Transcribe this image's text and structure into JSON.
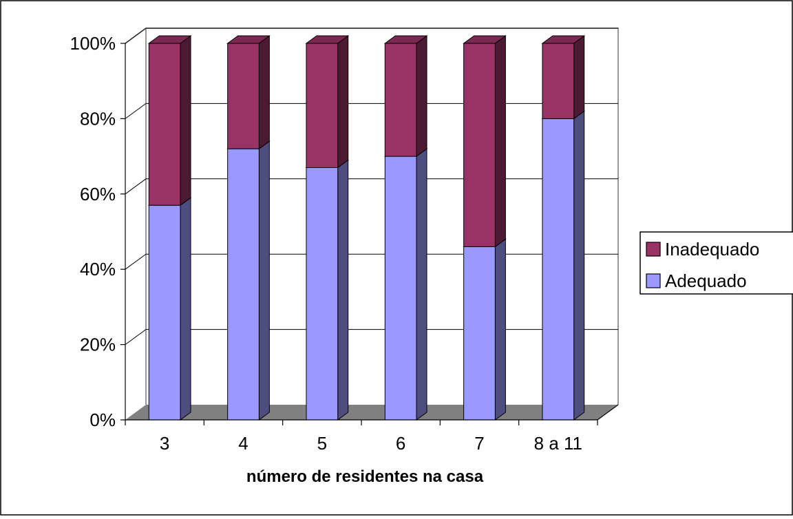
{
  "chart_data": {
    "type": "bar",
    "stacked": true,
    "three_d": true,
    "categories": [
      "3",
      "4",
      "5",
      "6",
      "7",
      "8 a 11"
    ],
    "series": [
      {
        "name": "Adequado",
        "values": [
          57,
          72,
          67,
          70,
          46,
          80
        ],
        "color": "#9999ff"
      },
      {
        "name": "Inadequado",
        "values": [
          43,
          28,
          33,
          30,
          54,
          20
        ],
        "color": "#993366"
      }
    ],
    "xlabel": "número de residentes na casa",
    "ylabel": "",
    "ylim": [
      0,
      100
    ],
    "yticks": [
      "0%",
      "20%",
      "40%",
      "60%",
      "80%",
      "100%"
    ],
    "grid": true,
    "legend": {
      "position": "right",
      "entries": [
        "Inadequado",
        "Adequado"
      ]
    },
    "colors": {
      "floor": "#808080",
      "wall_line": "#999999",
      "adequado_side": "#4d4d80",
      "adequado_top": "#7a7acc",
      "inadequado_side": "#4d1a33",
      "inadequado_top": "#7a2952"
    }
  }
}
